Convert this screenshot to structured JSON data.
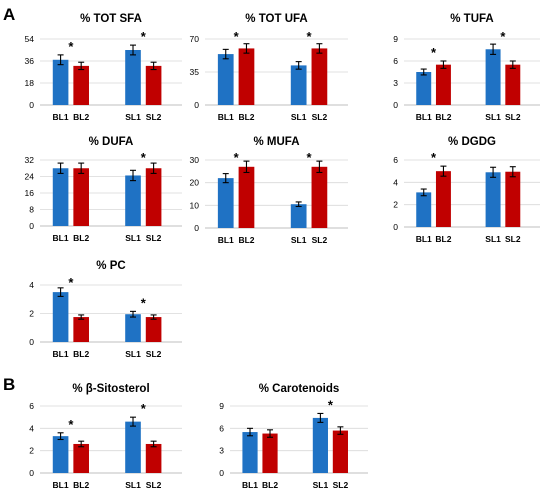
{
  "panel_labels": [
    "A",
    "B"
  ],
  "colors": {
    "series1": "#1f72c4",
    "series2": "#c00000"
  },
  "chart_data": [
    {
      "type": "bar",
      "title": "% TOT SFA",
      "categories": [
        "BL1",
        "BL2",
        "SL1",
        "SL2"
      ],
      "series": [
        {
          "values": [
            37,
            32,
            45,
            32
          ],
          "errors": [
            4,
            3,
            4,
            3
          ]
        }
      ],
      "yticks": [
        0,
        18,
        36,
        54
      ],
      "ylim": [
        0,
        54
      ],
      "significance": [
        "*",
        "*"
      ]
    },
    {
      "type": "bar",
      "title": "% TOT UFA",
      "categories": [
        "BL1",
        "BL2",
        "SL1",
        "SL2"
      ],
      "series": [
        {
          "values": [
            54,
            60,
            42,
            60
          ],
          "errors": [
            5,
            5,
            4,
            5
          ]
        }
      ],
      "yticks": [
        0,
        35,
        70
      ],
      "ylim": [
        0,
        70
      ],
      "significance": [
        "*",
        "*"
      ]
    },
    {
      "type": "bar",
      "title": "% TUFA",
      "categories": [
        "BL1",
        "BL2",
        "SL1",
        "SL2"
      ],
      "series": [
        {
          "values": [
            4.5,
            5.5,
            7.6,
            5.5
          ],
          "errors": [
            0.4,
            0.5,
            0.7,
            0.5
          ]
        }
      ],
      "yticks": [
        0,
        3,
        6,
        9
      ],
      "ylim": [
        0,
        9
      ],
      "significance": [
        "*",
        "*"
      ]
    },
    {
      "type": "bar",
      "title": "% DUFA",
      "categories": [
        "BL1",
        "BL2",
        "SL1",
        "SL2"
      ],
      "series": [
        {
          "values": [
            28,
            28,
            24.5,
            28
          ],
          "errors": [
            2.5,
            2.5,
            2.5,
            2.5
          ]
        }
      ],
      "yticks": [
        0,
        8,
        16,
        24,
        32
      ],
      "ylim": [
        0,
        32
      ],
      "significance": [
        "",
        "*"
      ]
    },
    {
      "type": "bar",
      "title": "% MUFA",
      "categories": [
        "BL1",
        "BL2",
        "SL1",
        "SL2"
      ],
      "series": [
        {
          "values": [
            22,
            27,
            10.5,
            27
          ],
          "errors": [
            2,
            2.5,
            1,
            2.5
          ]
        }
      ],
      "yticks": [
        0,
        10,
        20,
        30
      ],
      "ylim": [
        0,
        30
      ],
      "significance": [
        "*",
        "*"
      ]
    },
    {
      "type": "bar",
      "title": "% DGDG",
      "categories": [
        "BL1",
        "BL2",
        "SL1",
        "SL2"
      ],
      "series": [
        {
          "values": [
            3.1,
            5.0,
            4.9,
            4.95
          ],
          "errors": [
            0.3,
            0.45,
            0.45,
            0.45
          ]
        }
      ],
      "yticks": [
        0,
        2,
        4,
        6
      ],
      "ylim": [
        0,
        6
      ],
      "significance": [
        "*",
        ""
      ]
    },
    {
      "type": "bar",
      "title": "% PC",
      "categories": [
        "BL1",
        "BL2",
        "SL1",
        "SL2"
      ],
      "series": [
        {
          "values": [
            3.5,
            1.75,
            1.95,
            1.75
          ],
          "errors": [
            0.3,
            0.15,
            0.2,
            0.15
          ]
        }
      ],
      "yticks": [
        0,
        2,
        4
      ],
      "ylim": [
        0,
        4
      ],
      "significance": [
        "*",
        "*"
      ]
    },
    {
      "type": "bar",
      "title": "% β-Sitosterol",
      "categories": [
        "BL1",
        "BL2",
        "SL1",
        "SL2"
      ],
      "series": [
        {
          "values": [
            3.3,
            2.6,
            4.6,
            2.6
          ],
          "errors": [
            0.3,
            0.25,
            0.4,
            0.25
          ]
        }
      ],
      "yticks": [
        0,
        2,
        4,
        6
      ],
      "ylim": [
        0,
        6
      ],
      "significance": [
        "*",
        "*"
      ]
    },
    {
      "type": "bar",
      "title": "% Carotenoids",
      "categories": [
        "BL1",
        "BL2",
        "SL1",
        "SL2"
      ],
      "series": [
        {
          "values": [
            5.5,
            5.3,
            7.4,
            5.7
          ],
          "errors": [
            0.5,
            0.5,
            0.6,
            0.5
          ]
        }
      ],
      "yticks": [
        0,
        3,
        6,
        9
      ],
      "ylim": [
        0,
        9
      ],
      "significance": [
        "",
        "*"
      ]
    }
  ]
}
